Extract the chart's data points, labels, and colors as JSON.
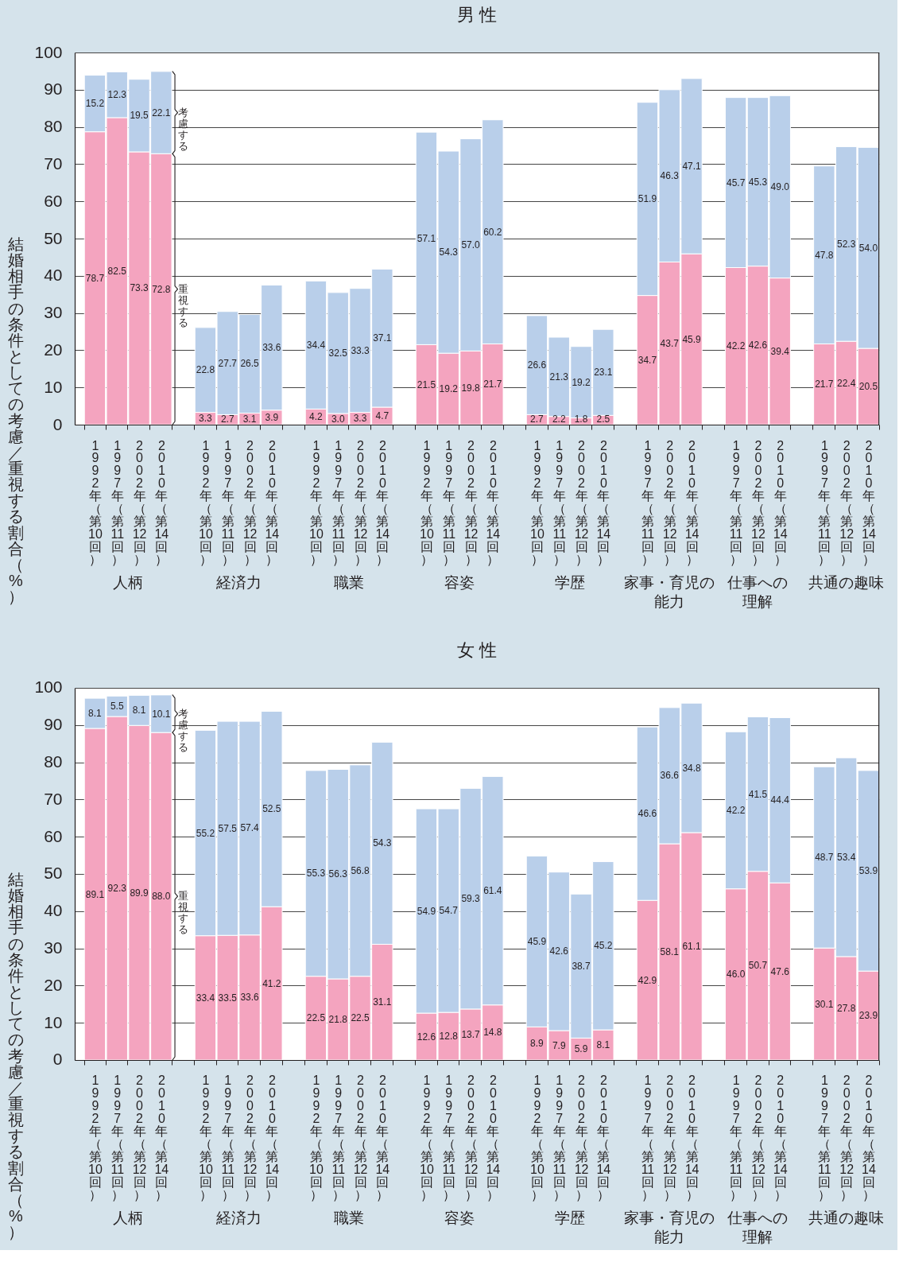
{
  "chart_data": [
    {
      "type": "bar",
      "stacked": true,
      "title": "男 性",
      "ylabel": "結婚相手の条件としての考慮／重視する割合（%）",
      "categories": [
        "1992年（第10回）",
        "1997年（第11回）",
        "2002年（第12回）",
        "2010年（第14回）",
        null,
        "1992年（第10回）",
        "1997年（第11回）",
        "2002年（第12回）",
        "2010年（第14回）",
        null,
        "1992年（第10回）",
        "1997年（第11回）",
        "2002年（第12回）",
        "2010年（第14回）",
        null,
        "1992年（第10回）",
        "1997年（第11回）",
        "2002年（第12回）",
        "2010年（第14回）",
        null,
        "1992年（第10回）",
        "1997年（第11回）",
        "2002年（第12回）",
        "2010年（第14回）",
        null,
        "1997年（第11回）",
        "2002年（第12回）",
        "2010年（第14回）",
        null,
        "1997年（第11回）",
        "2002年（第12回）",
        "2010年（第14回）",
        null,
        "1997年（第11回）",
        "2002年（第12回）",
        "2010年（第14回）"
      ],
      "series": [
        {
          "name": "重視する",
          "color": "#f4a4bf",
          "values": [
            78.7,
            82.5,
            73.3,
            72.8,
            null,
            3.3,
            2.7,
            3.1,
            3.9,
            null,
            4.2,
            3.0,
            3.3,
            4.7,
            null,
            21.5,
            19.2,
            19.8,
            21.7,
            null,
            2.7,
            2.2,
            1.8,
            2.5,
            null,
            34.7,
            43.7,
            45.9,
            null,
            42.2,
            42.6,
            39.4,
            null,
            21.7,
            22.4,
            20.5
          ],
          "value_labels": [
            "78.7",
            "82.5",
            "73.3",
            "72.8",
            null,
            "3.3",
            "2.7",
            "3.1",
            "3.9",
            null,
            "4.2",
            "3.0",
            "3.3",
            "4.7",
            null,
            "21.5",
            "19.2",
            "19.8",
            "21.7",
            null,
            "2.7",
            "2.2",
            "1.8",
            "2.5",
            null,
            "34.7",
            "43.7",
            "45.9",
            null,
            "42.2",
            "42.6",
            "39.4",
            null,
            "21.7",
            "22.4",
            "20.5"
          ]
        },
        {
          "name": "考慮する",
          "color": "#b9cfea",
          "values": [
            15.2,
            12.3,
            19.5,
            22.1,
            null,
            22.8,
            27.7,
            26.5,
            33.6,
            null,
            34.4,
            32.5,
            33.3,
            37.1,
            null,
            57.1,
            54.3,
            57.0,
            60.2,
            null,
            26.6,
            21.3,
            19.2,
            23.1,
            null,
            51.9,
            46.3,
            47.1,
            null,
            45.7,
            45.3,
            49.0,
            null,
            47.8,
            52.3,
            54.0
          ],
          "value_labels": [
            "15.2",
            "12.3",
            "19.5",
            "22.1",
            null,
            "22.8",
            "27.7",
            "26.5",
            "33.6",
            null,
            "34.4",
            "32.5",
            "33.3",
            "37.1",
            null,
            "57.1",
            "54.3",
            "57.0",
            "60.2",
            null,
            "26.6",
            "21.3",
            "19.2",
            "23.1",
            null,
            "51.9",
            "46.3",
            "47.1",
            null,
            "45.7",
            "45.3",
            "49.0",
            null,
            "47.8",
            "52.3",
            "54.0"
          ]
        }
      ],
      "annotations": [
        "人柄",
        "経済力",
        "職業",
        "容姿",
        "学歴",
        "家事・育児の能力",
        "仕事への理解",
        "共通の趣味"
      ],
      "ylim": [
        0,
        100
      ],
      "yticks": [
        0,
        10,
        20,
        30,
        40,
        50,
        60,
        70,
        80,
        90,
        100
      ],
      "grid": "y"
    },
    {
      "type": "bar",
      "stacked": true,
      "title": "女 性",
      "ylabel": "結婚相手の条件としての考慮／重視する割合（%）",
      "categories": [
        "1992年（第10回）",
        "1997年（第11回）",
        "2002年（第12回）",
        "2010年（第14回）",
        null,
        "1992年（第10回）",
        "1997年（第11回）",
        "2002年（第12回）",
        "2010年（第14回）",
        null,
        "1992年（第10回）",
        "1997年（第11回）",
        "2002年（第12回）",
        "2010年（第14回）",
        null,
        "1992年（第10回）",
        "1997年（第11回）",
        "2002年（第12回）",
        "2010年（第14回）",
        null,
        "1992年（第10回）",
        "1997年（第11回）",
        "2002年（第12回）",
        "2010年（第14回）",
        null,
        "1997年（第11回）",
        "2002年（第12回）",
        "2010年（第14回）",
        null,
        "1997年（第11回）",
        "2002年（第12回）",
        "2010年（第14回）",
        null,
        "1997年（第11回）",
        "2002年（第12回）",
        "2010年（第14回）"
      ],
      "series": [
        {
          "name": "重視する",
          "color": "#f4a4bf",
          "values": [
            89.1,
            92.3,
            89.9,
            88.0,
            null,
            33.4,
            33.5,
            33.6,
            41.2,
            null,
            22.5,
            21.8,
            22.5,
            31.1,
            null,
            12.6,
            12.8,
            13.7,
            14.8,
            null,
            8.9,
            7.9,
            5.9,
            8.1,
            null,
            42.9,
            58.1,
            61.1,
            null,
            46.0,
            50.7,
            47.6,
            null,
            30.1,
            27.8,
            23.9
          ],
          "value_labels": [
            "89.1",
            "92.3",
            "89.9",
            "88.0",
            null,
            "33.4",
            "33.5",
            "33.6",
            "41.2",
            null,
            "22.5",
            "21.8",
            "22.5",
            "31.1",
            null,
            "12.6",
            "12.8",
            "13.7",
            "14.8",
            null,
            "8.9",
            "7.9",
            "5.9",
            "8.1",
            null,
            "42.9",
            "58.1",
            "61.1",
            null,
            "46.0",
            "50.7",
            "47.6",
            null,
            "30.1",
            "27.8",
            "23.9"
          ]
        },
        {
          "name": "考慮する",
          "color": "#b9cfea",
          "values": [
            8.1,
            5.5,
            8.1,
            10.1,
            null,
            55.2,
            57.5,
            57.4,
            52.5,
            null,
            55.3,
            56.3,
            56.8,
            54.3,
            null,
            54.9,
            54.7,
            59.3,
            61.4,
            null,
            45.9,
            42.6,
            38.7,
            45.2,
            null,
            46.6,
            36.6,
            34.8,
            null,
            42.2,
            41.5,
            44.4,
            null,
            48.7,
            53.4,
            53.9
          ],
          "value_labels": [
            "8.1",
            "5.5",
            "8.1",
            "10.1",
            null,
            "55.2",
            "57.5",
            "57.4",
            "52.5",
            null,
            "55.3",
            "56.3",
            "56.8",
            "54.3",
            null,
            "54.9",
            "54.7",
            "59.3",
            "61.4",
            null,
            "45.9",
            "42.6",
            "38.7",
            "45.2",
            null,
            "46.6",
            "36.6",
            "34.8",
            null,
            "42.2",
            "41.5",
            "44.4",
            null,
            "48.7",
            "53.4",
            "53.9"
          ]
        }
      ],
      "annotations": [
        "人柄",
        "経済力",
        "職業",
        "容姿",
        "学歴",
        "家事・育児の能力",
        "仕事への理解",
        "共通の趣味"
      ],
      "ylim": [
        0,
        100
      ],
      "yticks": [
        0,
        10,
        20,
        30,
        40,
        50,
        60,
        70,
        80,
        90,
        100
      ],
      "grid": "y"
    }
  ]
}
